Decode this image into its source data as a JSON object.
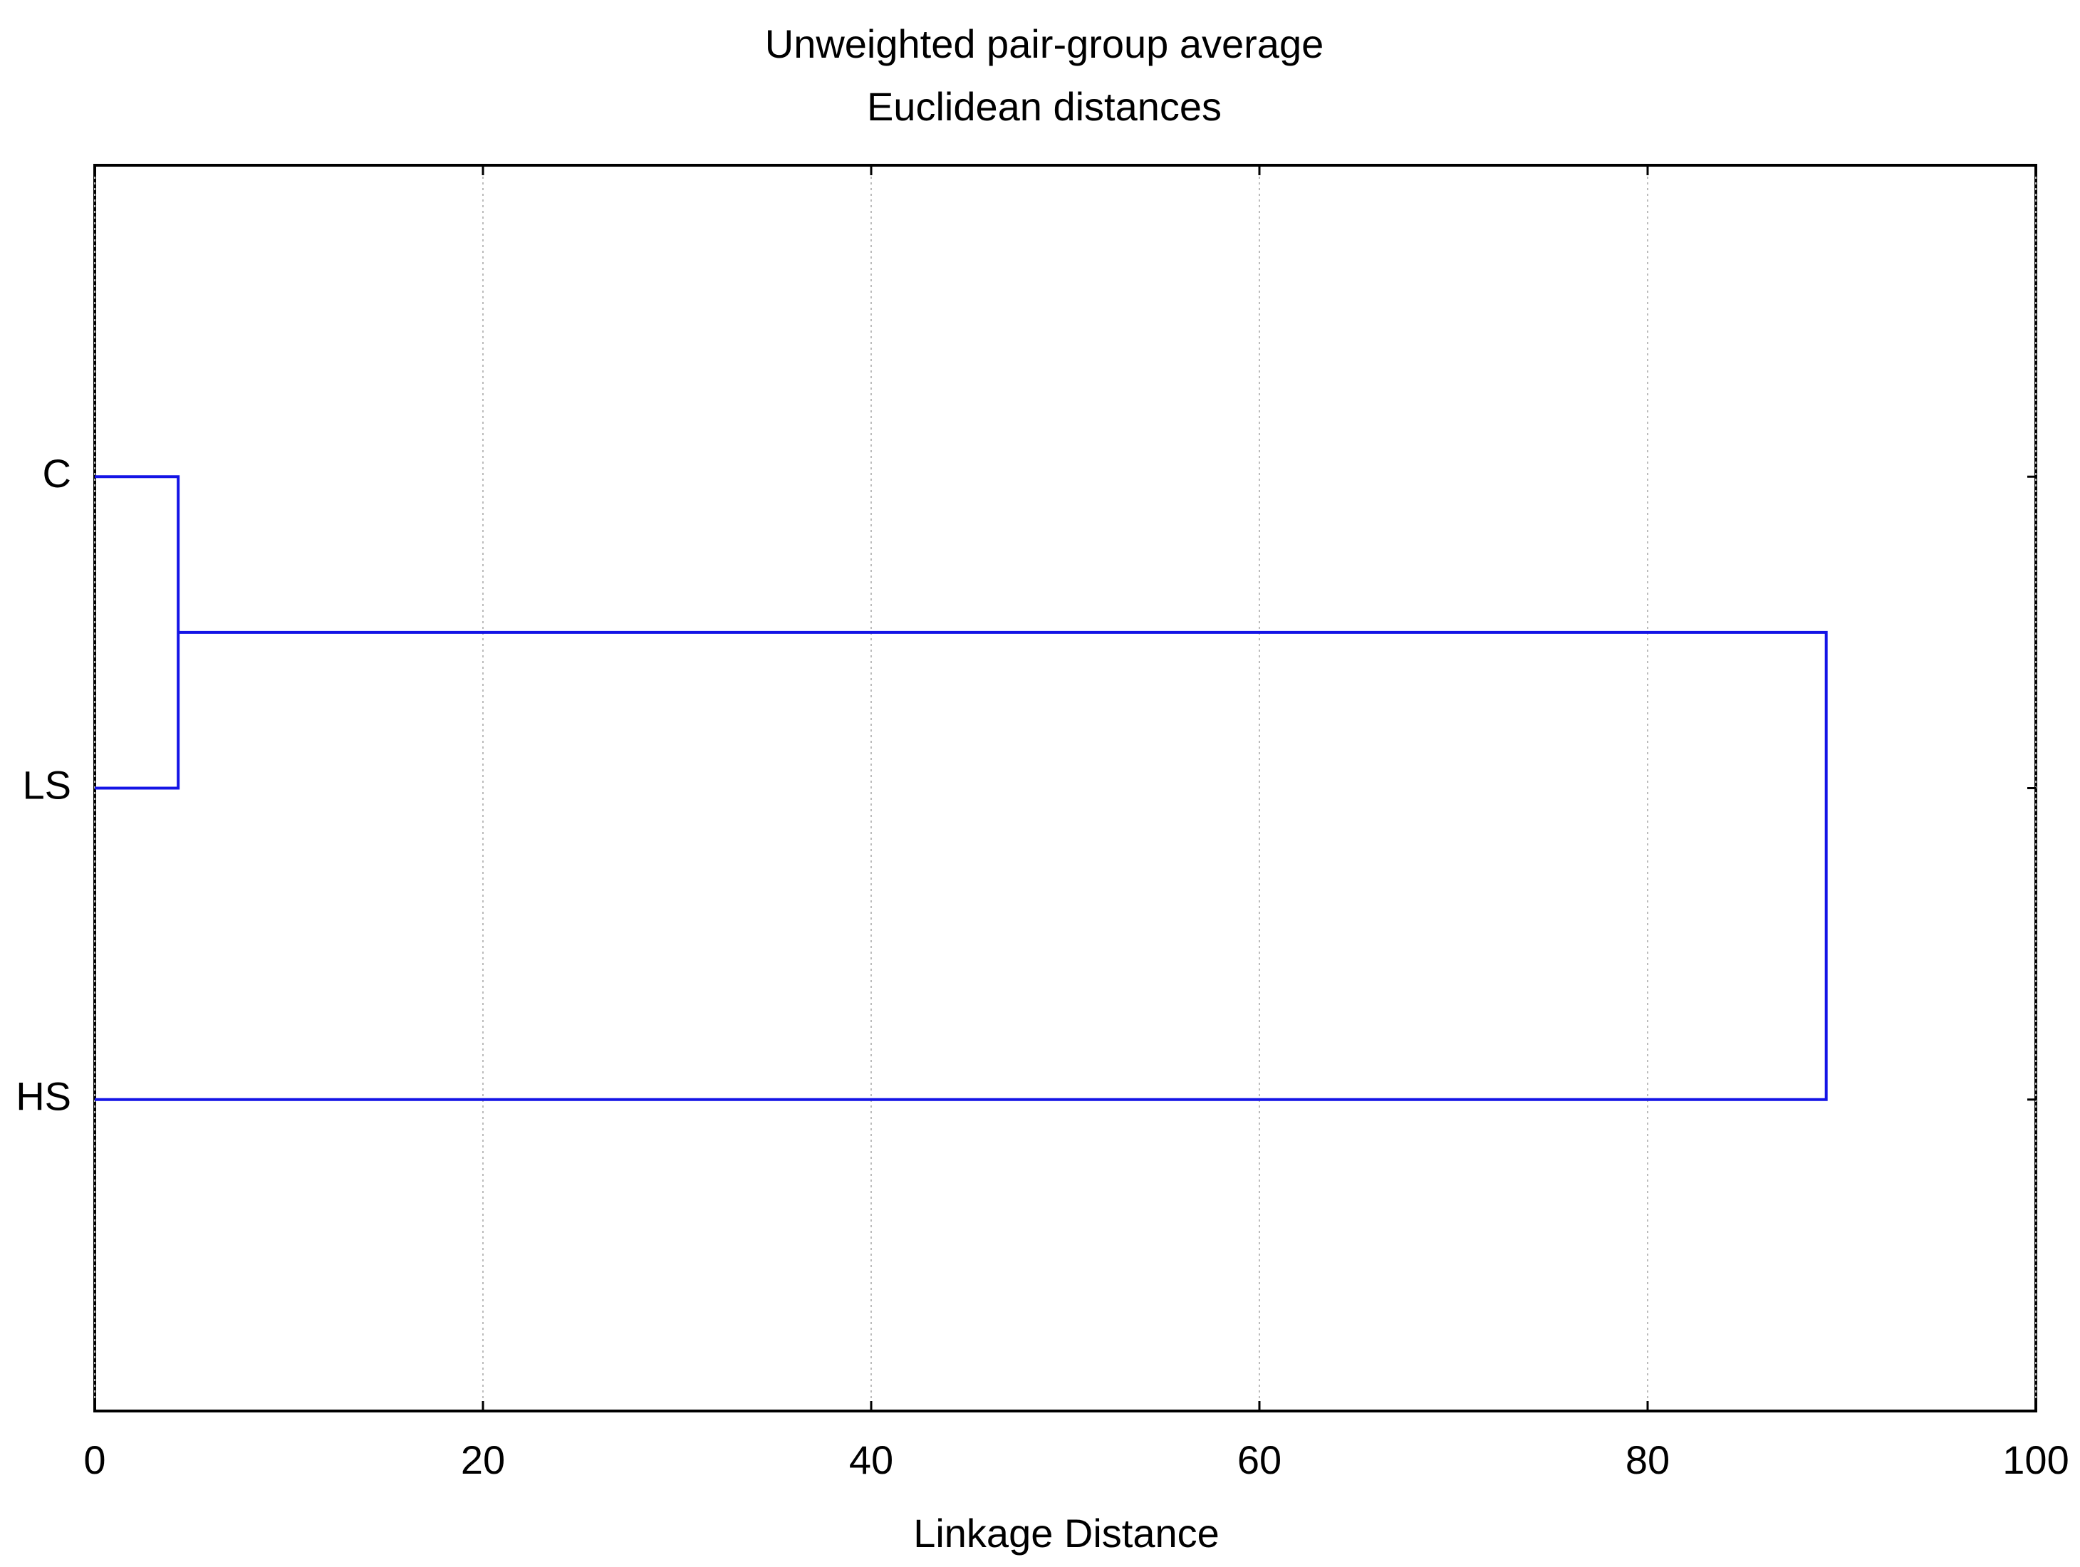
{
  "chart_data": {
    "type": "dendrogram",
    "title": "Unweighted pair-group average",
    "subtitle": "Euclidean distances",
    "x_label": "Linkage Distance",
    "leaves": [
      "C",
      "LS",
      "HS"
    ],
    "merges": [
      {
        "join": [
          0,
          1
        ],
        "distance": 4.3
      },
      {
        "join": [
          3,
          2
        ],
        "distance": 89.2
      }
    ],
    "color": "#1414e6",
    "xlim": [
      0,
      100
    ],
    "xticks": [
      0,
      20,
      40,
      60,
      80,
      100
    ],
    "grid": true
  }
}
